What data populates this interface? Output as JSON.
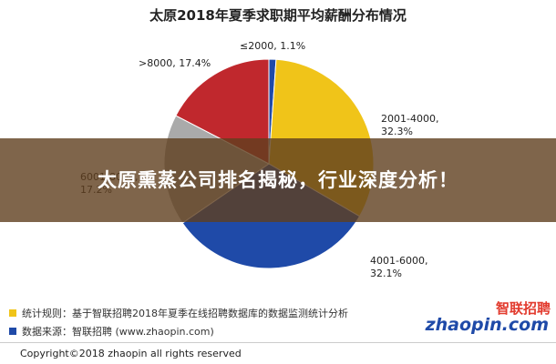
{
  "chart_data": {
    "type": "pie",
    "title": "太原2018年夏季求职期平均薪酬分布情况",
    "slices": [
      {
        "name": "≤2000",
        "percent_label": "1.1%",
        "value": 1.1,
        "color": "#1f4aa8",
        "label_color": "#222222"
      },
      {
        "name": "2001-4000",
        "percent_label": "32.3%",
        "value": 32.3,
        "color": "#f0c419",
        "label_color": "#222222"
      },
      {
        "name": "4001-6000",
        "percent_label": "32.1%",
        "value": 32.1,
        "color": "#1f4aa8",
        "label_color": "#222222"
      },
      {
        "name": "6001-8000",
        "percent_label": "17.2%",
        "value": 17.2,
        "color": "#aaaaaa",
        "label_color": "#222222"
      },
      {
        "name": ">8000",
        "percent_label": "17.4%",
        "value": 17.4,
        "color": "#c0282d",
        "label_color": "#222222"
      }
    ]
  },
  "overlay": {
    "text": "太原熏蒸公司排名揭秘，行业深度分析！"
  },
  "footer": {
    "rule_label": "统计规则：",
    "rule_text": "基于智联招聘2018年夏季在线招聘数据库的数据监测统计分析",
    "source_label": "数据来源：",
    "source_text": "智联招聘 (www.zhaopin.com)",
    "copyright": "Copyright©2018 zhaopin all rights reserved"
  },
  "brand": {
    "cn": "智联招聘",
    "en": "zhaopin.com"
  }
}
